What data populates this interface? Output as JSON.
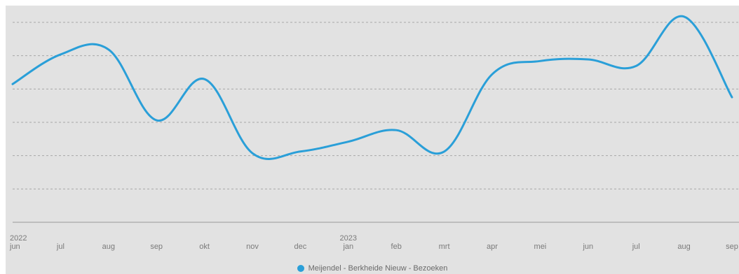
{
  "chart_data": {
    "type": "line",
    "categories": [
      "jun",
      "jul",
      "aug",
      "sep",
      "okt",
      "nov",
      "dec",
      "jan",
      "feb",
      "mrt",
      "apr",
      "mei",
      "jun",
      "jul",
      "aug",
      "sep"
    ],
    "year_markers": [
      {
        "index": 0,
        "label": "2022"
      },
      {
        "index": 7,
        "label": "2023"
      }
    ],
    "series": [
      {
        "name": "Meijendel - Berkheide Nieuw - Bezoeken",
        "color": "#2a9fd8",
        "values": [
          4.2,
          5.1,
          5.25,
          3.1,
          4.35,
          2.1,
          2.15,
          2.45,
          2.8,
          2.15,
          4.5,
          4.9,
          4.95,
          4.75,
          6.25,
          3.8
        ]
      }
    ],
    "ylim": [
      0,
      6.5
    ],
    "gridlines": 6,
    "grid": true,
    "legend_position": "bottom-center",
    "xlabel": "",
    "ylabel": ""
  },
  "legend": {
    "label": "Meijendel - Berkheide Nieuw - Bezoeken",
    "color": "#2a9fd8"
  }
}
